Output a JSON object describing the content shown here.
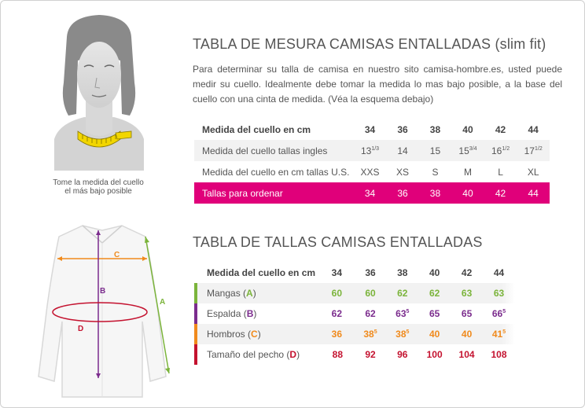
{
  "neck_section": {
    "title": "TABLA DE MESURA CAMISAS ENTALLADAS (slim fit)",
    "intro": "Para determinar su talla de camisa en nuestro sito camisa-hombre.es, usted puede medir su cuello. Idealmente debe tomar la medida lo mas bajo posible, a la base del cuello con una cinta de medida. (Véa la esquema debajo)",
    "caption": "Tome la medida del cuello el más bajo posible",
    "header": {
      "label": "Medida del cuello en cm",
      "values": [
        "34",
        "36",
        "38",
        "40",
        "42",
        "44"
      ]
    },
    "rows": [
      {
        "label": "Medida del cuello tallas ingles",
        "values": [
          {
            "whole": "13",
            "frac": "1/3"
          },
          {
            "whole": "14",
            "frac": ""
          },
          {
            "whole": "15",
            "frac": ""
          },
          {
            "whole": "15",
            "frac": "3/4"
          },
          {
            "whole": "16",
            "frac": "1/2"
          },
          {
            "whole": "17",
            "frac": "1/2"
          }
        ]
      },
      {
        "label": "Medida del cuello en cm tallas U.S.",
        "values": [
          {
            "whole": "XXS",
            "frac": ""
          },
          {
            "whole": "XS",
            "frac": ""
          },
          {
            "whole": "S",
            "frac": ""
          },
          {
            "whole": "M",
            "frac": ""
          },
          {
            "whole": "L",
            "frac": ""
          },
          {
            "whole": "XL",
            "frac": ""
          }
        ]
      },
      {
        "label": "Tallas para ordenar",
        "values": [
          {
            "whole": "34",
            "frac": ""
          },
          {
            "whole": "36",
            "frac": ""
          },
          {
            "whole": "38",
            "frac": ""
          },
          {
            "whole": "40",
            "frac": ""
          },
          {
            "whole": "42",
            "frac": ""
          },
          {
            "whole": "44",
            "frac": ""
          }
        ]
      }
    ],
    "order_color": "#e0007a"
  },
  "size_section": {
    "title": "TABLA DE TALLAS CAMISAS ENTALLADAS",
    "header": {
      "label": "Medida del cuello en cm",
      "values": [
        "34",
        "36",
        "38",
        "40",
        "42",
        "44"
      ]
    },
    "rows": [
      {
        "name": "Mangas",
        "letter": "A",
        "color": "#7bb43b",
        "values": [
          {
            "whole": "60",
            "frac": ""
          },
          {
            "whole": "60",
            "frac": ""
          },
          {
            "whole": "62",
            "frac": ""
          },
          {
            "whole": "62",
            "frac": ""
          },
          {
            "whole": "63",
            "frac": ""
          },
          {
            "whole": "63",
            "frac": ""
          }
        ]
      },
      {
        "name": "Espalda",
        "letter": "B",
        "color": "#7b2c8d",
        "values": [
          {
            "whole": "62",
            "frac": ""
          },
          {
            "whole": "62",
            "frac": ""
          },
          {
            "whole": "63",
            "frac": "5"
          },
          {
            "whole": "65",
            "frac": ""
          },
          {
            "whole": "65",
            "frac": ""
          },
          {
            "whole": "66",
            "frac": "5"
          }
        ]
      },
      {
        "name": "Hombros",
        "letter": "C",
        "color": "#f08a1c",
        "values": [
          {
            "whole": "36",
            "frac": ""
          },
          {
            "whole": "38",
            "frac": "5"
          },
          {
            "whole": "38",
            "frac": "5"
          },
          {
            "whole": "40",
            "frac": ""
          },
          {
            "whole": "40",
            "frac": ""
          },
          {
            "whole": "41",
            "frac": "5"
          }
        ]
      },
      {
        "name": "Tamaño del pecho",
        "letter": "D",
        "color": "#c4122f",
        "values": [
          {
            "whole": "88",
            "frac": ""
          },
          {
            "whole": "92",
            "frac": ""
          },
          {
            "whole": "96",
            "frac": ""
          },
          {
            "whole": "100",
            "frac": ""
          },
          {
            "whole": "104",
            "frac": ""
          },
          {
            "whole": "108",
            "frac": ""
          }
        ]
      }
    ]
  },
  "shirt_diagram": {
    "labels": [
      "A",
      "B",
      "C",
      "D"
    ],
    "colors": {
      "A": "#7bb43b",
      "B": "#7b2c8d",
      "C": "#f08a1c",
      "D": "#c4122f"
    }
  },
  "icons": {
    "neck_illustration": "person-neck-measure-icon",
    "shirt_illustration": "shirt-measure-icon"
  }
}
